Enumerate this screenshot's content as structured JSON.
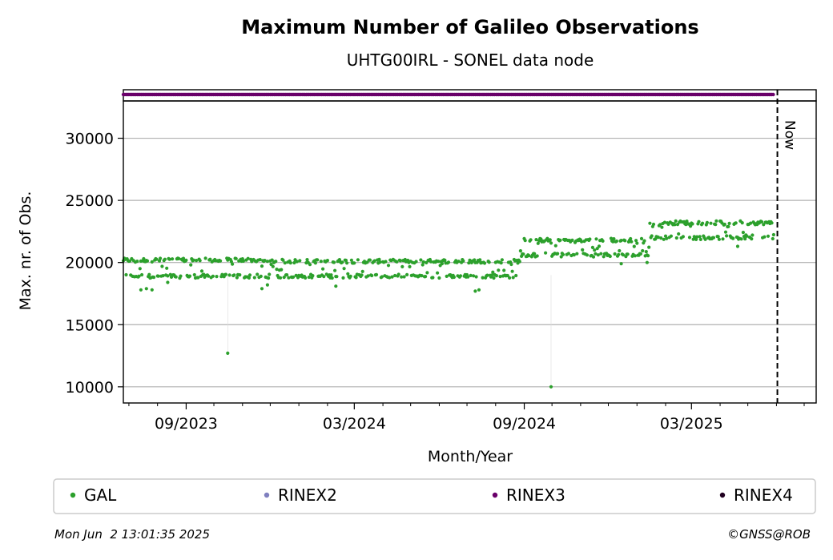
{
  "chart_data": {
    "type": "scatter",
    "title": "Maximum Number of Galileo Observations",
    "subtitle": "UHTG00IRL - SONEL data node",
    "xlabel": "Month/Year",
    "ylabel": "Max. nr. of Obs.",
    "x_range": [
      "2023-06-25",
      "2025-07-14"
    ],
    "ylim": [
      8700,
      33000
    ],
    "yticks": [
      10000,
      15000,
      20000,
      25000,
      30000
    ],
    "xticks": [
      {
        "date": "2023-09-01",
        "label": "09/2023"
      },
      {
        "date": "2024-03-01",
        "label": "03/2024"
      },
      {
        "date": "2024-09-01",
        "label": "09/2024"
      },
      {
        "date": "2025-03-01",
        "label": "03/2025"
      }
    ],
    "minor_ticks": [
      "2023-07-01",
      "2023-08-01",
      "2023-10-01",
      "2023-11-01",
      "2023-12-01",
      "2024-01-01",
      "2024-02-01",
      "2024-04-01",
      "2024-05-01",
      "2024-06-01",
      "2024-07-01",
      "2024-08-01",
      "2024-10-01",
      "2024-11-01",
      "2024-12-01",
      "2025-01-01",
      "2025-02-01",
      "2025-04-01",
      "2025-05-01",
      "2025-06-01",
      "2025-07-01"
    ],
    "grid": "horizontal",
    "now_marker": {
      "date": "2025-06-02",
      "label": "Now"
    },
    "rinex_strip": {
      "series": "RINEX3",
      "start": "2023-06-25",
      "end": "2025-05-30"
    },
    "series": [
      {
        "name": "GAL",
        "color": "#2ca02c",
        "segments": [
          {
            "start": "2023-06-25",
            "end": "2023-11-15",
            "low": 18900,
            "high": 20200
          },
          {
            "start": "2023-11-15",
            "end": "2024-08-28",
            "low": 18900,
            "high": 20100
          },
          {
            "start": "2024-08-28",
            "end": "2025-01-15",
            "low": 20600,
            "high": 21800
          },
          {
            "start": "2025-01-15",
            "end": "2025-05-30",
            "low": 22000,
            "high": 23200
          }
        ],
        "dips": [
          {
            "date": "2023-07-14",
            "value": 17800
          },
          {
            "date": "2023-07-20",
            "value": 17900
          },
          {
            "date": "2023-07-26",
            "value": 17800
          },
          {
            "date": "2023-08-12",
            "value": 18400
          },
          {
            "date": "2023-11-22",
            "value": 17900
          },
          {
            "date": "2023-11-28",
            "value": 18200
          },
          {
            "date": "2024-02-10",
            "value": 18100
          },
          {
            "date": "2024-07-10",
            "value": 17700
          },
          {
            "date": "2024-07-14",
            "value": 17800
          },
          {
            "date": "2024-12-15",
            "value": 19900
          },
          {
            "date": "2025-01-12",
            "value": 20000
          },
          {
            "date": "2025-04-20",
            "value": 21300
          }
        ],
        "outliers": [
          {
            "date": "2023-10-16",
            "value": 12700
          },
          {
            "date": "2024-09-30",
            "value": 10000
          }
        ]
      }
    ],
    "legend": [
      {
        "name": "GAL",
        "color": "#2ca02c"
      },
      {
        "name": "RINEX2",
        "color": "#7f7fbf"
      },
      {
        "name": "RINEX3",
        "color": "#6a006a"
      },
      {
        "name": "RINEX4",
        "color": "#200020"
      }
    ]
  },
  "footer": {
    "timestamp": "Mon Jun  2 13:01:35 2025",
    "credit": "©GNSS@ROB"
  }
}
